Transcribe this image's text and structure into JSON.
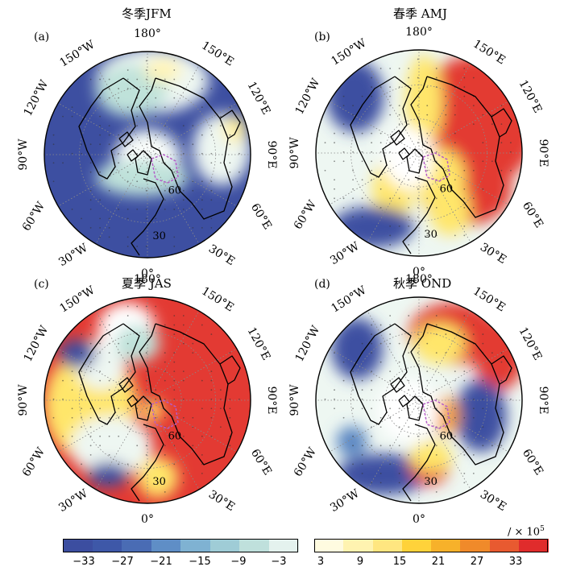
{
  "panels": [
    {
      "id": "a",
      "label": "(a)",
      "title": "冬季JFM",
      "lon_labels": {
        "top": "180°",
        "upper_left": "150°W",
        "upper_right": "150°E",
        "left_upper": "120°W",
        "right_upper": "120°E",
        "left": "90°W",
        "right": "90°E",
        "left_lower": "60°W",
        "right_lower": "60°E",
        "lower_left": "30°W",
        "lower_right": "30°E",
        "bottom": "0°"
      },
      "inner_labels": [
        "60",
        "30"
      ]
    },
    {
      "id": "b",
      "label": "(b)",
      "title": "春季 AMJ",
      "lon_labels": {
        "top": "180°",
        "upper_left": "150°W",
        "upper_right": "150°E",
        "left_upper": "120°W",
        "right_upper": "120°E",
        "left": "90°W",
        "right": "90°E",
        "left_lower": "60°W",
        "right_lower": "60°E",
        "lower_left": "30°W",
        "lower_right": "30°E",
        "bottom": "0°"
      },
      "inner_labels": [
        "60",
        "30"
      ]
    },
    {
      "id": "c",
      "label": "(c)",
      "title": "夏季 JAS",
      "lon_labels": {
        "top": "180°",
        "upper_left": "150°W",
        "upper_right": "150°E",
        "left_upper": "120°W",
        "right_upper": "120°E",
        "left": "90°W",
        "right": "90°E",
        "left_lower": "60°W",
        "right_lower": "60°E",
        "lower_left": "30°W",
        "lower_right": "30°E",
        "bottom": "0°"
      },
      "inner_labels": [
        "60",
        "30"
      ]
    },
    {
      "id": "d",
      "label": "(d)",
      "title": "秋季 OND",
      "lon_labels": {
        "top": "180°",
        "upper_left": "150°W",
        "upper_right": "150°E",
        "left_upper": "120°W",
        "right_upper": "120°E",
        "left": "90°W",
        "right": "90°E",
        "left_lower": "60°W",
        "right_lower": "60°E",
        "lower_left": "30°W",
        "lower_right": "30°E",
        "bottom": "0°"
      },
      "inner_labels": [
        "60",
        "30"
      ]
    }
  ],
  "colorbar_negative": {
    "ticks": [
      "−33",
      "−27",
      "−21",
      "−15",
      "−9",
      "−3"
    ],
    "colors": [
      "#3c4ea0",
      "#3e58a8",
      "#4a6cb4",
      "#5f8ec6",
      "#7fb2d2",
      "#9fccd6",
      "#bfe0dc",
      "#e4f2ee"
    ]
  },
  "colorbar_positive": {
    "ticks": [
      "3",
      "9",
      "15",
      "21",
      "27",
      "33"
    ],
    "colors": [
      "#fffbe0",
      "#fff3b0",
      "#ffe680",
      "#ffd23a",
      "#f7b12a",
      "#f08a2a",
      "#e85a30",
      "#e02c2c"
    ]
  },
  "unit_label": "/ × 10",
  "unit_exponent": "5",
  "colors": {
    "deep_blue": "#3d4fa1",
    "mid_blue": "#5a86c2",
    "light_teal": "#bfe2da",
    "pale": "#eef7f2",
    "yellow": "#ffe66a",
    "orange": "#f5a030",
    "red": "#e33a33",
    "coast": "#000000",
    "box": "#b55cc8"
  }
}
